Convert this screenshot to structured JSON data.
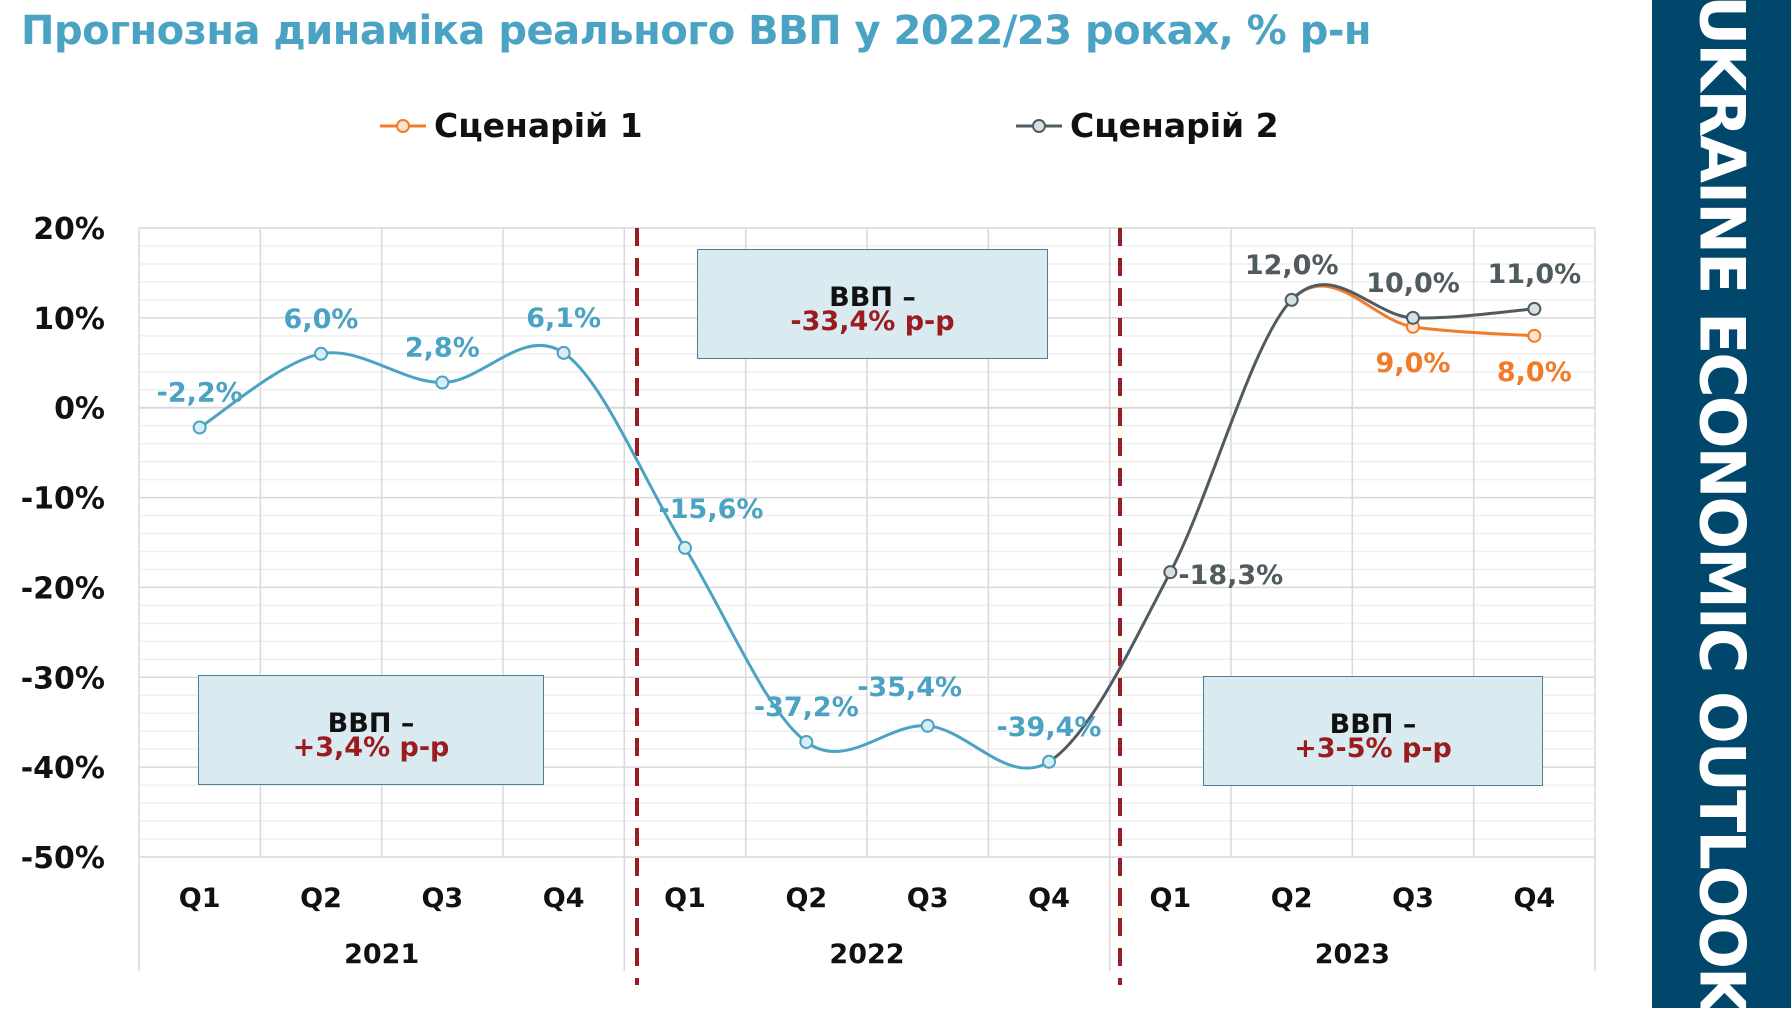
{
  "title": "Прогнозна динаміка реального ВВП у 2022/23 роках, % р-н",
  "brand": "UKRAINE ECONOMIC OUTLOOK",
  "colors": {
    "history": "#4ba3c3",
    "scenario1": "#f07c2a",
    "scenario2": "#505b60",
    "divider": "#9b1c20",
    "band": "#00476b",
    "box_fill": "#daeaf1"
  },
  "annotations": [
    {
      "line1": "ВВП –",
      "line2": "+3,4% р-р"
    },
    {
      "line1": "ВВП –",
      "line2": "-33,4% р-р"
    },
    {
      "line1": "ВВП –",
      "line2": "+3-5% р-р"
    }
  ],
  "chart_data": {
    "type": "line",
    "title": "Прогнозна динаміка реального ВВП у 2022/23 роках, % р-н",
    "ylabel": "",
    "xlabel": "",
    "ylim": [
      -50,
      20
    ],
    "yticks": [
      20,
      10,
      0,
      -10,
      -20,
      -30,
      -40,
      -50
    ],
    "ytick_labels": [
      "20%",
      "10%",
      "0%",
      "-10%",
      "-20%",
      "-30%",
      "-40%",
      "-50%"
    ],
    "categories": [
      "Q1",
      "Q2",
      "Q3",
      "Q4",
      "Q1",
      "Q2",
      "Q3",
      "Q4",
      "Q1",
      "Q2",
      "Q3",
      "Q4"
    ],
    "groups": [
      {
        "label": "2021",
        "span": 4
      },
      {
        "label": "2022",
        "span": 4
      },
      {
        "label": "2023",
        "span": 4
      }
    ],
    "grid": true,
    "legend": {
      "placement": "top",
      "entries": [
        "Сценарій 1",
        "Сценарій 2"
      ]
    },
    "series": [
      {
        "name": "Сценарій 1",
        "values": [
          -2.2,
          6.0,
          2.8,
          6.1,
          -15.6,
          -37.2,
          -35.4,
          -39.4,
          -18.3,
          12.0,
          9.0,
          8.0
        ],
        "labels": [
          "-2,2%",
          "6,0%",
          "2,8%",
          "6,1%",
          "-15,6%",
          "-37,2%",
          "-35,4%",
          "-39,4%",
          "-18,3%",
          "12,0%",
          "9,0%",
          "8,0%"
        ]
      },
      {
        "name": "Сценарій 2",
        "values": [
          -2.2,
          6.0,
          2.8,
          6.1,
          -15.6,
          -37.2,
          -35.4,
          -39.4,
          -18.3,
          12.0,
          10.0,
          11.0
        ],
        "labels": [
          "-2,2%",
          "6,0%",
          "2,8%",
          "6,1%",
          "-15,6%",
          "-37,2%",
          "-35,4%",
          "-39,4%",
          "-18,3%",
          "12,0%",
          "10,0%",
          "11,0%"
        ]
      }
    ]
  }
}
